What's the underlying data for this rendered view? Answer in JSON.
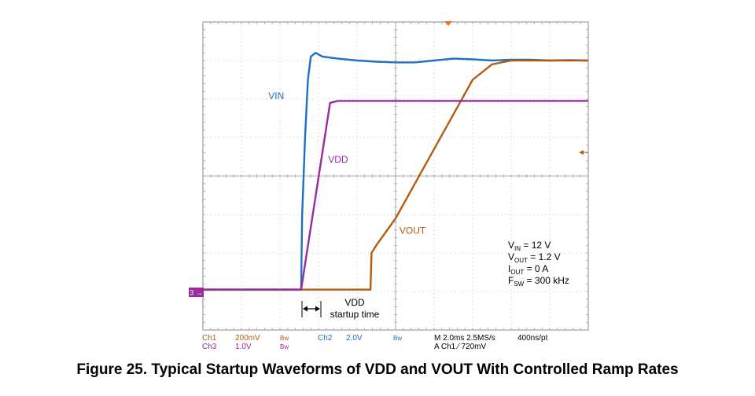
{
  "figure": {
    "caption": "Figure 25.  Typical Startup Waveforms of VDD and VOUT With Controlled Ramp Rates"
  },
  "chart_data": {
    "type": "line",
    "title": "",
    "xlabel": "",
    "ylabel": "",
    "x_unit": "ms",
    "xlim": [
      0,
      20
    ],
    "ylim": [
      -4,
      4
    ],
    "y_unit": "divisions",
    "grid": true,
    "series": [
      {
        "name": "VIN",
        "color": "#1f6fc4",
        "x": [
          0,
          5.1,
          5.15,
          5.3,
          5.45,
          5.6,
          5.85,
          6.2,
          7,
          8,
          9,
          10,
          11,
          12,
          13,
          14,
          15,
          16,
          17,
          18,
          19,
          20
        ],
        "y": [
          -2.95,
          -2.95,
          -1.0,
          1.0,
          2.5,
          3.1,
          3.2,
          3.1,
          3.05,
          3.0,
          2.97,
          2.95,
          2.95,
          3.0,
          3.05,
          3.03,
          3.0,
          3.02,
          3.02,
          3.0,
          3.01,
          3.0
        ]
      },
      {
        "name": "VDD",
        "color": "#9b2aa0",
        "x": [
          0,
          5.1,
          6.6,
          7,
          8,
          10,
          12,
          14,
          16,
          18,
          20
        ],
        "y": [
          -2.95,
          -2.95,
          1.9,
          1.95,
          1.95,
          1.95,
          1.95,
          1.95,
          1.95,
          1.95,
          1.95
        ]
      },
      {
        "name": "VOUT",
        "color": "#b35b0e",
        "x": [
          0,
          5.1,
          8.7,
          8.75,
          9.0,
          10,
          11,
          12,
          13,
          14,
          15,
          16,
          17,
          18,
          19,
          20
        ],
        "y": [
          -2.95,
          -2.95,
          -2.95,
          -2.0,
          -1.8,
          -1.1,
          -0.2,
          0.7,
          1.6,
          2.5,
          2.9,
          3.0,
          3.0,
          3.0,
          3.0,
          3.0
        ]
      }
    ],
    "trace_labels": [
      {
        "series": "VIN",
        "text": "VIN",
        "x": 3.4,
        "y": 2.0
      },
      {
        "series": "VDD",
        "text": "VDD",
        "x": 6.5,
        "y": 0.35
      },
      {
        "series": "VOUT",
        "text": "VOUT",
        "x": 10.2,
        "y": -1.5
      }
    ],
    "ground_marker": "3 →",
    "annotations": {
      "conditions": [
        {
          "main": "V",
          "sub": "IN",
          "rest": " = 12 V"
        },
        {
          "main": "V",
          "sub": "OUT",
          "rest": " = 1.2 V"
        },
        {
          "main": "I",
          "sub": "OUT",
          "rest": " = 0 A"
        },
        {
          "main": "F",
          "sub": "SW",
          "rest": " = 300 kHz"
        }
      ],
      "startup_label_line1": "VDD",
      "startup_label_line2": "startup time",
      "startup_interval": [
        5.1,
        6.6
      ]
    },
    "scope_settings": {
      "row1": [
        "Ch1",
        "200mV",
        "Bw",
        "Ch2",
        "2.0V",
        "Bw",
        "M 2.0ms 2.5MS/s",
        "400ns/pt"
      ],
      "row2": [
        "Ch3",
        "1.0V",
        "Bw",
        "A  Ch1  ⁄  720mV"
      ]
    }
  }
}
